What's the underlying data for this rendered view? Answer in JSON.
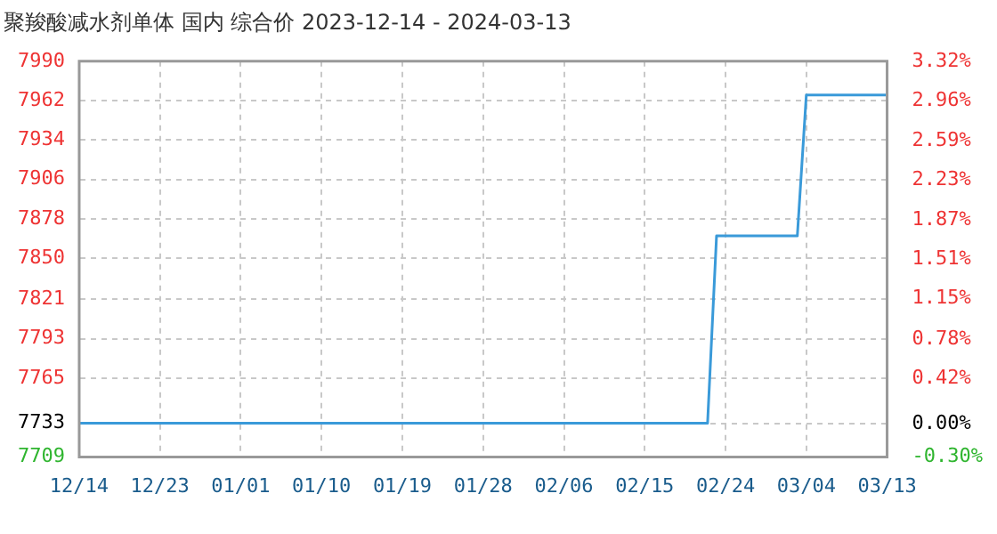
{
  "chart_data": {
    "type": "line",
    "title": "聚羧酸减水剂单体 国内 综合价 2023-12-14 - 2024-03-13",
    "x": [
      "2023-12-14",
      "2024-02-22",
      "2024-02-23",
      "2024-03-03",
      "2024-03-04",
      "2024-03-13"
    ],
    "series": [
      {
        "color": "#3a9ad9",
        "values": [
          7733,
          7733,
          7866,
          7866,
          7966,
          7966
        ]
      }
    ],
    "xlim": [
      "2023-12-14",
      "2024-03-13"
    ],
    "xticks": [
      {
        "value": "2023-12-14",
        "label": "12/14"
      },
      {
        "value": "2023-12-23",
        "label": "12/23"
      },
      {
        "value": "2024-01-01",
        "label": "01/01"
      },
      {
        "value": "2024-01-10",
        "label": "01/10"
      },
      {
        "value": "2024-01-19",
        "label": "01/19"
      },
      {
        "value": "2024-01-28",
        "label": "01/28"
      },
      {
        "value": "2024-02-06",
        "label": "02/06"
      },
      {
        "value": "2024-02-15",
        "label": "02/15"
      },
      {
        "value": "2024-02-24",
        "label": "02/24"
      },
      {
        "value": "2024-03-04",
        "label": "03/04"
      },
      {
        "value": "2024-03-13",
        "label": "03/13"
      }
    ],
    "ylim": [
      7709,
      7990
    ],
    "yticks": [
      7709,
      7733,
      7765,
      7793,
      7821,
      7850,
      7878,
      7906,
      7934,
      7962,
      7990
    ],
    "y2lim": [
      -0.3,
      3.32
    ],
    "y2ticks": [
      {
        "value": -0.3,
        "label": "-0.30%"
      },
      {
        "value": 0,
        "label": "0.00%"
      },
      {
        "value": 0.42,
        "label": "0.42%"
      },
      {
        "value": 0.78,
        "label": "0.78%"
      },
      {
        "value": 1.15,
        "label": "1.15%"
      },
      {
        "value": 1.51,
        "label": "1.51%"
      },
      {
        "value": 1.87,
        "label": "1.87%"
      },
      {
        "value": 2.23,
        "label": "2.23%"
      },
      {
        "value": 2.59,
        "label": "2.59%"
      },
      {
        "value": 2.96,
        "label": "2.96%"
      },
      {
        "value": 3.32,
        "label": "3.32%"
      }
    ],
    "grid": true,
    "legend": false,
    "marker": "none",
    "line_style": "solid"
  }
}
